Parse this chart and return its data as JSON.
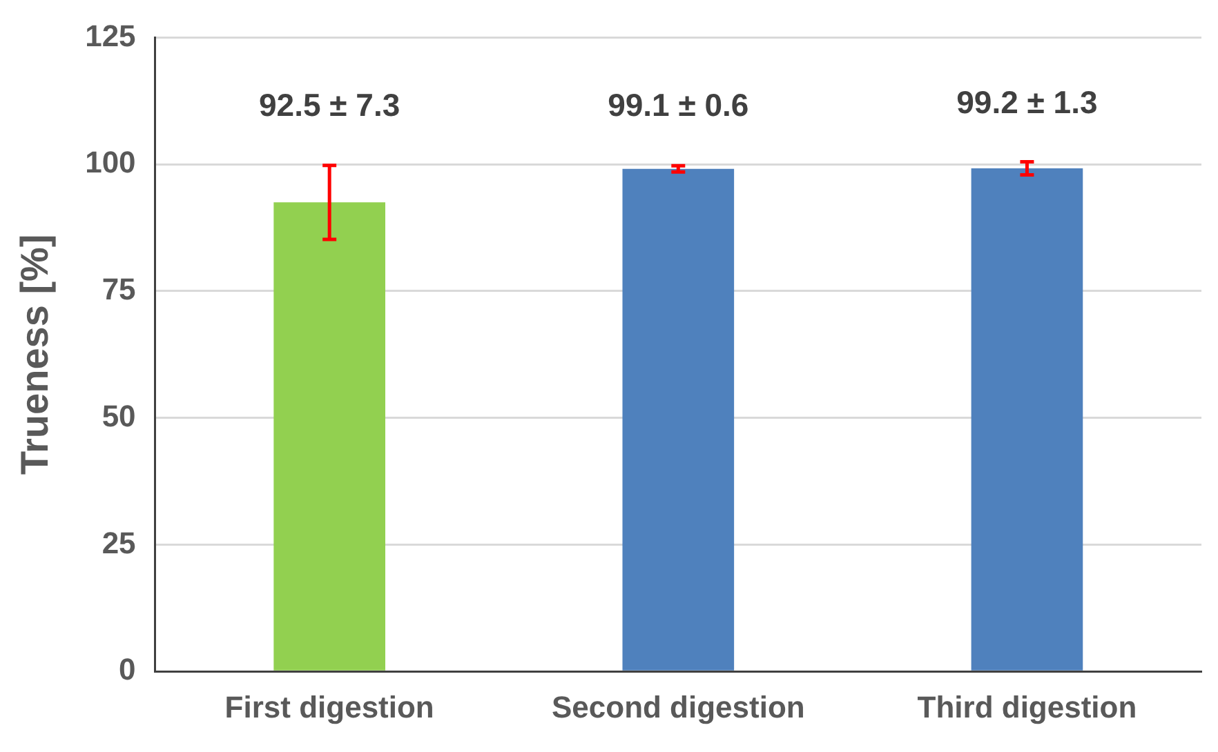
{
  "chart_data": {
    "type": "bar",
    "ylabel": "Trueness [%]",
    "categories": [
      "First digestion",
      "Second digestion",
      "Third digestion"
    ],
    "values": [
      92.5,
      99.1,
      99.2
    ],
    "colors": [
      "#92d050",
      "#4f81bd",
      "#4f81bd"
    ],
    "errors": [
      7.3,
      0.6,
      1.3
    ],
    "value_labels": [
      "92.5 ± 7.3",
      "99.1 ± 0.6",
      "99.2 ± 1.3"
    ],
    "ylim": [
      0,
      125
    ],
    "yticks": [
      0,
      25,
      50,
      75,
      100,
      125
    ],
    "grid": "y",
    "legend": false
  }
}
